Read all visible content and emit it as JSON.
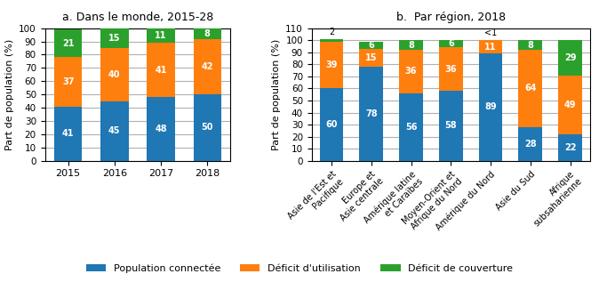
{
  "chart_data": [
    {
      "type": "bar",
      "stacked": true,
      "data_labels": true,
      "grid": true,
      "legend": "lower center",
      "title": "a. Dans le monde, 2015-28",
      "y_label": "Part de population (%)",
      "categories": [
        "2015",
        "2016",
        "2017",
        "2018"
      ],
      "series": [
        {
          "name": "Population connectée",
          "values": [
            41,
            45,
            48,
            50
          ]
        },
        {
          "name": "Déficit d'utilisation",
          "values": [
            37,
            40,
            41,
            42
          ]
        },
        {
          "name": "Déficit de couverture",
          "values": [
            21,
            15,
            11,
            8
          ]
        }
      ],
      "ylim": [
        0,
        100
      ],
      "yticks": [
        0,
        10,
        20,
        30,
        40,
        50,
        60,
        70,
        80,
        90,
        100
      ]
    },
    {
      "type": "bar",
      "stacked": true,
      "data_labels": true,
      "grid": true,
      "legend": "lower center",
      "title": "b.  Par région, 2018",
      "y_label": "Part de population (%)",
      "categories": [
        "Asie de l'Est et\nPacifique",
        "Europe et\nAsie centrale",
        "Amérique latine\net Caraïbes",
        "Moyen-Orient et\nAfrique du Nord",
        "Amérique du Nord",
        "Asie du Sud",
        "Afrique\nsubsaharienne"
      ],
      "series": [
        {
          "name": "Population connectée",
          "values": [
            60,
            78,
            56,
            58,
            89,
            28,
            22
          ]
        },
        {
          "name": "Déficit d'utilisation",
          "values": [
            39,
            15,
            36,
            36,
            11,
            64,
            49
          ]
        },
        {
          "name": "Déficit de couverture",
          "values": [
            2,
            6,
            8,
            6,
            0,
            8,
            29
          ],
          "value_labels": [
            "2",
            "6",
            "8",
            "6",
            "<1",
            "8",
            "29"
          ]
        }
      ],
      "ylim": [
        0,
        110
      ],
      "yticks": [
        0,
        10,
        20,
        30,
        40,
        50,
        60,
        70,
        80,
        90,
        100,
        110
      ]
    }
  ]
}
